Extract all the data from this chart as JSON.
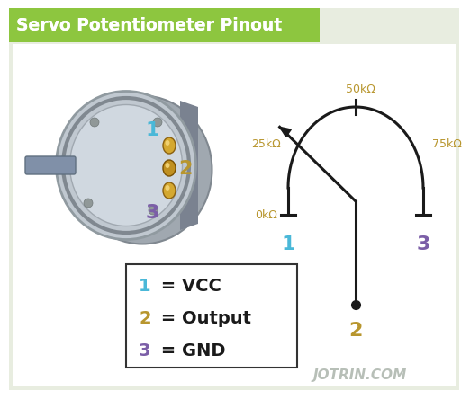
{
  "title": "Servo Potentiometer Pinout",
  "title_bg_color": "#8dc63f",
  "title_text_color": "#ffffff",
  "bg_color": "#ffffff",
  "outer_bg": "#e8ede0",
  "diagram_line_color": "#1a1a1a",
  "pin1_color": "#4ab8d8",
  "pin2_color": "#b8962e",
  "pin3_color": "#7b5ea7",
  "legend_border_color": "#333333",
  "legend_bg": "#ffffff",
  "label_0k": "0kΩ",
  "label_25k": "25kΩ",
  "label_50k": "50kΩ",
  "label_75k": "75kΩ",
  "label_1": "1",
  "label_2": "2",
  "label_3": "3",
  "legend_line1_num": "1",
  "legend_line1_eq": " = VCC",
  "legend_line2_num": "2",
  "legend_line2_eq": " = Output",
  "legend_line3_num": "3",
  "legend_line3_eq": " = GND",
  "jotrin_text": "JOTRIN.COM",
  "jotrin_color": "#b0b8b0",
  "resistance_color": "#b8962e"
}
